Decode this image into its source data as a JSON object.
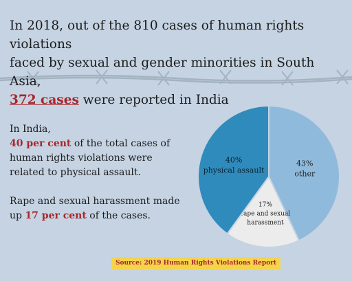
{
  "headline": {
    "line1": "In 2018, out of the 810 cases of human rights violations",
    "line2": "faced by sexual and gender minorities in South Asia,",
    "highlight": "372 cases",
    "line3_rest": " were reported in India"
  },
  "text1": {
    "line1": "In India,",
    "highlight": "40 per cent",
    "rest": " of the total cases of human rights violations were related to physical assault."
  },
  "text2": {
    "intro": "Rape and sexual harassment made up ",
    "highlight": "17 per cent",
    "rest": " of the cases."
  },
  "source": {
    "prefix": "Source: ",
    "name": "2019 Human Rights Violations Report"
  },
  "colors": {
    "background": "#c5d3e2",
    "accent_red": "#a8262c",
    "source_bg": "#f5d44a"
  },
  "chart_data": {
    "type": "pie",
    "title": "",
    "slices": [
      {
        "label": "other",
        "percent_label": "43%",
        "value": 43,
        "color": "#8fbadc"
      },
      {
        "label": "rape and sexual harassment",
        "percent_label": "17%",
        "value": 17,
        "color": "#ececec"
      },
      {
        "label": "physical assault",
        "percent_label": "40%",
        "value": 40,
        "color": "#2e8bbb"
      }
    ]
  }
}
